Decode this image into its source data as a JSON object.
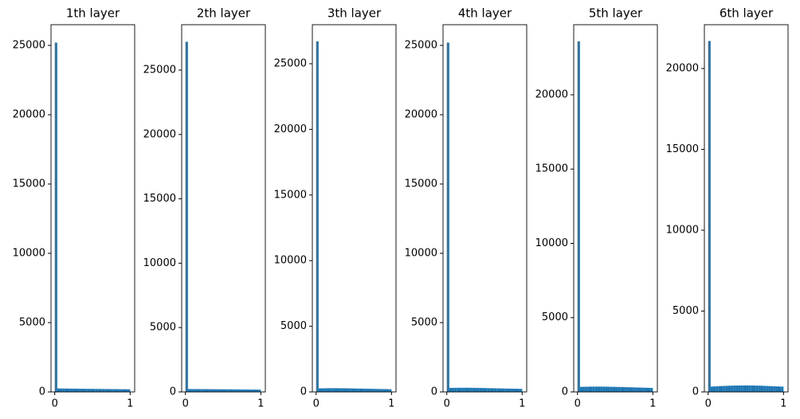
{
  "chart_data": [
    {
      "type": "histogram",
      "title": "1th layer",
      "color": "#1f77b4",
      "bins": [
        0,
        0.0333,
        0.0667,
        0.1,
        0.1333,
        0.1667,
        0.2,
        0.2333,
        0.2667,
        0.3,
        0.3333,
        0.3667,
        0.4,
        0.4333,
        0.4667,
        0.5,
        0.5333,
        0.5667,
        0.6,
        0.6333,
        0.6667,
        0.7,
        0.7333,
        0.7667,
        0.8,
        0.8333,
        0.8667,
        0.9,
        0.9333,
        0.9667,
        1
      ],
      "values": [
        25200,
        250,
        248,
        245,
        243,
        240,
        238,
        236,
        233,
        231,
        229,
        226,
        224,
        222,
        220,
        218,
        216,
        214,
        212,
        210,
        208,
        206,
        204,
        202,
        200,
        198,
        196,
        194,
        192,
        190
      ],
      "xlim": [
        -0.05,
        1.06
      ],
      "xticks": [
        0,
        1
      ],
      "ylim": [
        0,
        26494
      ],
      "yticks": [
        0,
        5000,
        10000,
        15000,
        20000,
        25000
      ]
    },
    {
      "type": "histogram",
      "title": "2th layer",
      "color": "#1f77b4",
      "bins": [
        0,
        0.0333,
        0.0667,
        0.1,
        0.1333,
        0.1667,
        0.2,
        0.2333,
        0.2667,
        0.3,
        0.3333,
        0.3667,
        0.4,
        0.4333,
        0.4667,
        0.5,
        0.5333,
        0.5667,
        0.6,
        0.6333,
        0.6667,
        0.7,
        0.7333,
        0.7667,
        0.8,
        0.8333,
        0.8667,
        0.9,
        0.9333,
        0.9667,
        1
      ],
      "values": [
        27200,
        225,
        224,
        222,
        221,
        220,
        218,
        217,
        215,
        214,
        212,
        211,
        209,
        208,
        206,
        205,
        203,
        201,
        200,
        198,
        196,
        194,
        192,
        190,
        188,
        186,
        184,
        182,
        180,
        178
      ],
      "xlim": [
        -0.05,
        1.06
      ],
      "xticks": [
        0,
        1
      ],
      "ylim": [
        0,
        28527
      ],
      "yticks": [
        0,
        5000,
        10000,
        15000,
        20000,
        25000
      ]
    },
    {
      "type": "histogram",
      "title": "3th layer",
      "color": "#1f77b4",
      "bins": [
        0,
        0.0333,
        0.0667,
        0.1,
        0.1333,
        0.1667,
        0.2,
        0.2333,
        0.2667,
        0.3,
        0.3333,
        0.3667,
        0.4,
        0.4333,
        0.4667,
        0.5,
        0.5333,
        0.5667,
        0.6,
        0.6333,
        0.6667,
        0.7,
        0.7333,
        0.7667,
        0.8,
        0.8333,
        0.8667,
        0.9,
        0.9333,
        0.9667,
        1
      ],
      "values": [
        26700,
        270,
        275,
        280,
        282,
        284,
        285,
        285,
        284,
        282,
        280,
        277,
        274,
        270,
        266,
        262,
        258,
        254,
        250,
        246,
        242,
        238,
        234,
        230,
        226,
        222,
        218,
        214,
        210,
        205
      ],
      "xlim": [
        -0.05,
        1.06
      ],
      "xticks": [
        0,
        1
      ],
      "ylim": [
        0,
        27973
      ],
      "yticks": [
        0,
        5000,
        10000,
        15000,
        20000,
        25000
      ]
    },
    {
      "type": "histogram",
      "title": "4th layer",
      "color": "#1f77b4",
      "bins": [
        0,
        0.0333,
        0.0667,
        0.1,
        0.1333,
        0.1667,
        0.2,
        0.2333,
        0.2667,
        0.3,
        0.3333,
        0.3667,
        0.4,
        0.4333,
        0.4667,
        0.5,
        0.5333,
        0.5667,
        0.6,
        0.6333,
        0.6667,
        0.7,
        0.7333,
        0.7667,
        0.8,
        0.8333,
        0.8667,
        0.9,
        0.9333,
        0.9667,
        1
      ],
      "values": [
        25200,
        290,
        292,
        295,
        297,
        298,
        300,
        300,
        299,
        297,
        295,
        292,
        289,
        285,
        281,
        277,
        273,
        269,
        265,
        261,
        257,
        253,
        249,
        245,
        241,
        237,
        233,
        229,
        225,
        220
      ],
      "xlim": [
        -0.05,
        1.06
      ],
      "xticks": [
        0,
        1
      ],
      "ylim": [
        0,
        26494
      ],
      "yticks": [
        0,
        5000,
        10000,
        15000,
        20000,
        25000
      ]
    },
    {
      "type": "histogram",
      "title": "5th layer",
      "color": "#1f77b4",
      "bins": [
        0,
        0.0333,
        0.0667,
        0.1,
        0.1333,
        0.1667,
        0.2,
        0.2333,
        0.2667,
        0.3,
        0.3333,
        0.3667,
        0.4,
        0.4333,
        0.4667,
        0.5,
        0.5333,
        0.5667,
        0.6,
        0.6333,
        0.6667,
        0.7,
        0.7333,
        0.7667,
        0.8,
        0.8333,
        0.8667,
        0.9,
        0.9333,
        0.9667,
        1
      ],
      "values": [
        23600,
        340,
        345,
        350,
        352,
        355,
        357,
        358,
        358,
        357,
        355,
        352,
        349,
        345,
        341,
        337,
        333,
        329,
        325,
        320,
        315,
        310,
        305,
        300,
        295,
        290,
        285,
        280,
        275,
        270
      ],
      "xlim": [
        -0.05,
        1.06
      ],
      "xticks": [
        0,
        1
      ],
      "ylim": [
        0,
        24718
      ],
      "yticks": [
        0,
        5000,
        10000,
        15000,
        20000
      ]
    },
    {
      "type": "histogram",
      "title": "6th layer",
      "color": "#1f77b4",
      "bins": [
        0,
        0.0333,
        0.0667,
        0.1,
        0.1333,
        0.1667,
        0.2,
        0.2333,
        0.2667,
        0.3,
        0.3333,
        0.3667,
        0.4,
        0.4333,
        0.4667,
        0.5,
        0.5333,
        0.5667,
        0.6,
        0.6333,
        0.6667,
        0.7,
        0.7333,
        0.7667,
        0.8,
        0.8333,
        0.8667,
        0.9,
        0.9333,
        0.9667,
        1
      ],
      "values": [
        21700,
        330,
        340,
        350,
        358,
        365,
        372,
        378,
        383,
        388,
        392,
        395,
        398,
        400,
        401,
        401,
        400,
        398,
        395,
        391,
        386,
        380,
        374,
        368,
        361,
        354,
        347,
        340,
        334,
        328
      ],
      "xlim": [
        -0.05,
        1.06
      ],
      "xticks": [
        0,
        1
      ],
      "ylim": [
        0,
        22709
      ],
      "yticks": [
        0,
        5000,
        10000,
        15000,
        20000
      ]
    }
  ]
}
